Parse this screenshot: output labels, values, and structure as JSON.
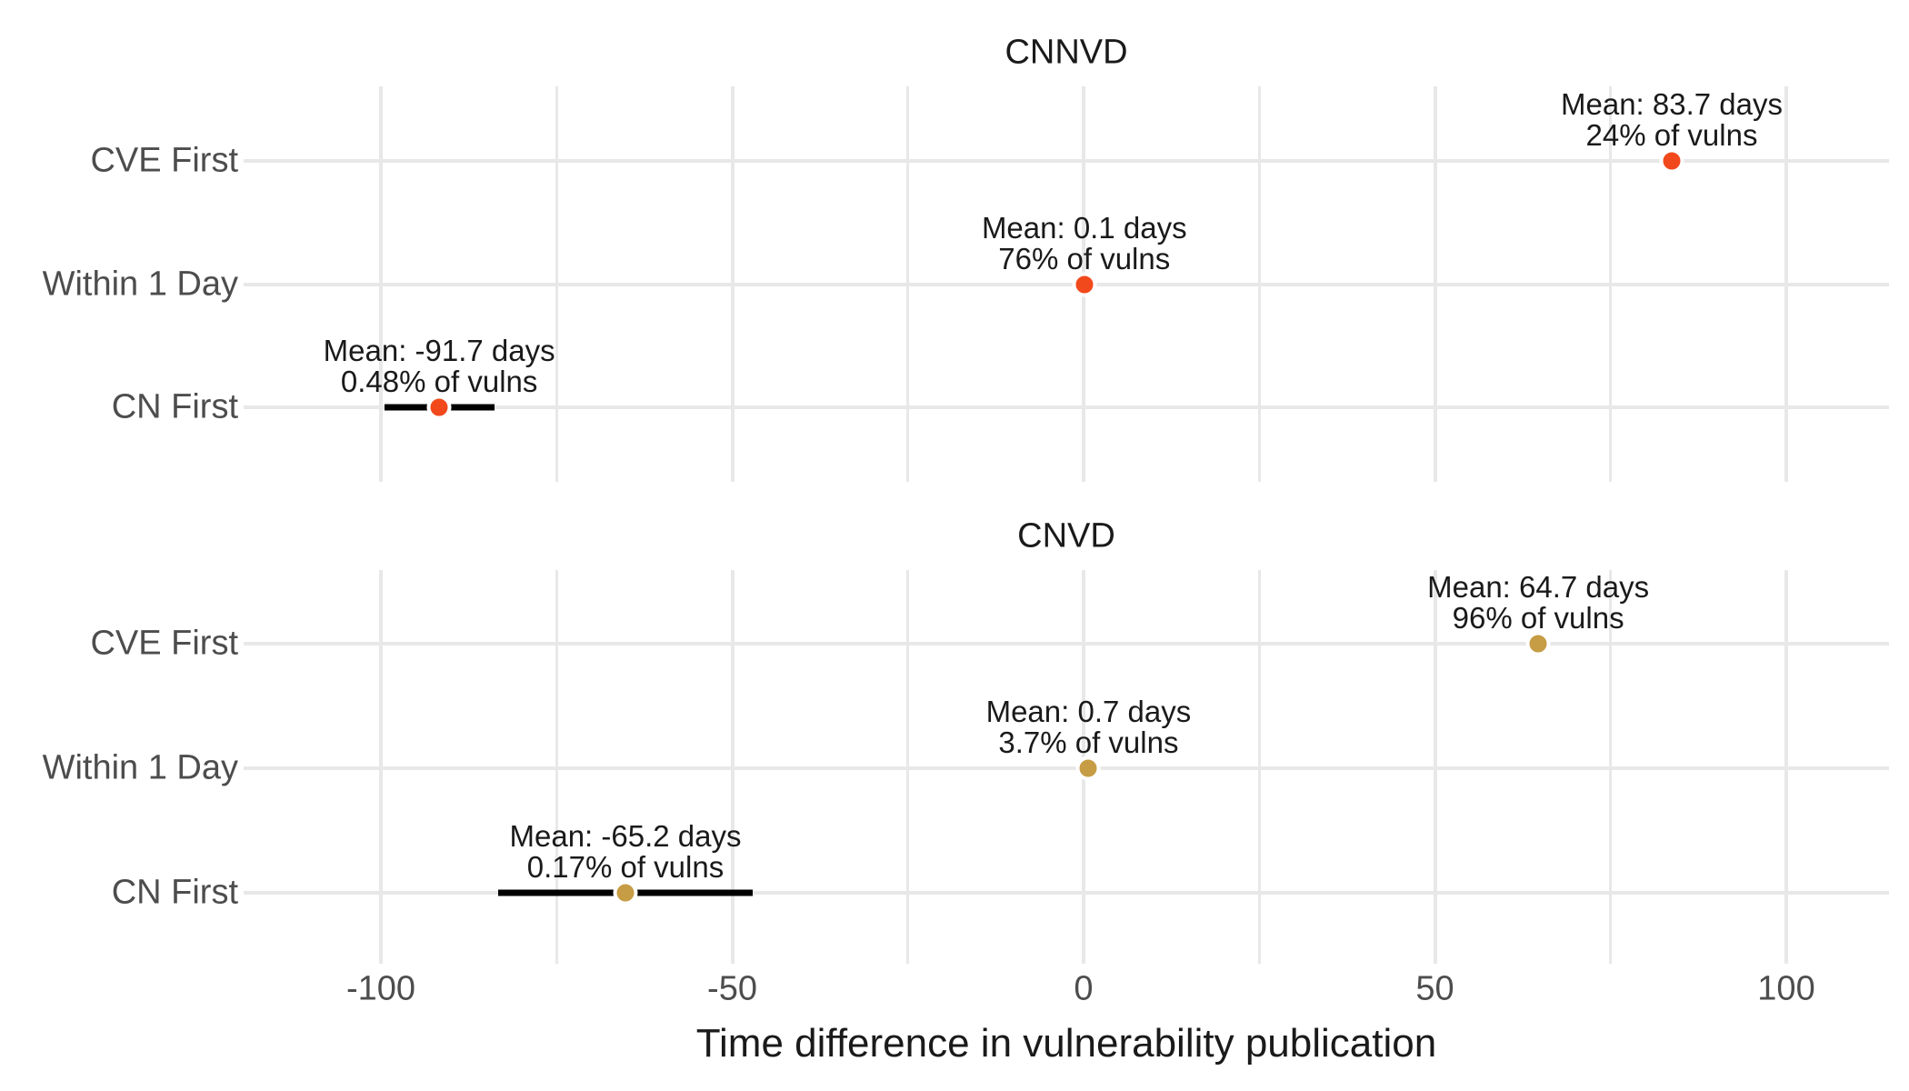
{
  "chart_data": {
    "type": "scatter",
    "xlabel": "Time difference in vulnerability publication",
    "x_unit": "days",
    "xlim": [
      -119.5,
      114.6
    ],
    "x_ticks": [
      -100,
      -50,
      0,
      50,
      100
    ],
    "x_tick_labels": [
      "-100",
      "-50",
      "0",
      "50",
      "100"
    ],
    "x_minor_gridlines": [
      -75,
      -25,
      25,
      75
    ],
    "categories": [
      "CVE First",
      "Within 1 Day",
      "CN First"
    ],
    "legend": "none",
    "grid": true,
    "background": "#FFFFFF",
    "gridline_color": "#E8E8E8",
    "errorbar_color": "#000000",
    "axis_text_color": "#4D4D4D",
    "label_text_color": "#1A1A1A",
    "facets": [
      {
        "title": "CNNVD",
        "point_color": "#F2491C",
        "points": [
          {
            "category": "CVE First",
            "mean_days": 83.7,
            "pct_of_vulns": 24,
            "label_line1": "Mean: 83.7 days",
            "label_line2": "24% of vulns",
            "ci_days": null
          },
          {
            "category": "Within 1 Day",
            "mean_days": 0.1,
            "pct_of_vulns": 76,
            "label_line1": "Mean: 0.1 days",
            "label_line2": "76% of vulns",
            "ci_days": null
          },
          {
            "category": "CN First",
            "mean_days": -91.7,
            "pct_of_vulns": 0.48,
            "label_line1": "Mean: -91.7 days",
            "label_line2": "0.48% of vulns",
            "ci_days": [
              -99.5,
              -83.8
            ]
          }
        ]
      },
      {
        "title": "CNVD",
        "point_color": "#C69C44",
        "points": [
          {
            "category": "CVE First",
            "mean_days": 64.7,
            "pct_of_vulns": 96,
            "label_line1": "Mean: 64.7 days",
            "label_line2": "96% of vulns",
            "ci_days": null
          },
          {
            "category": "Within 1 Day",
            "mean_days": 0.7,
            "pct_of_vulns": 3.7,
            "label_line1": "Mean: 0.7 days",
            "label_line2": "3.7% of vulns",
            "ci_days": null
          },
          {
            "category": "CN First",
            "mean_days": -65.2,
            "pct_of_vulns": 0.17,
            "label_line1": "Mean: -65.2 days",
            "label_line2": "0.17% of vulns",
            "ci_days": [
              -83.3,
              -47.1
            ]
          }
        ]
      }
    ]
  }
}
